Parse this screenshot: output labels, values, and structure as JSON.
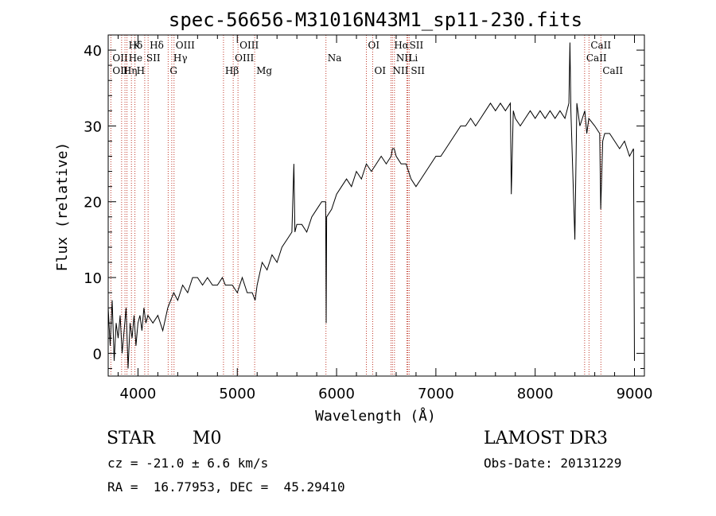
{
  "chart_data": {
    "type": "line",
    "title": "spec-56656-M31016N43M1_sp11-230.fits",
    "xlabel": "Wavelength (Å)",
    "ylabel": "Flux (relative)",
    "xlim": [
      3700,
      9100
    ],
    "ylim": [
      -3,
      42
    ],
    "xticks": [
      4000,
      5000,
      6000,
      7000,
      8000,
      9000
    ],
    "yticks": [
      0,
      10,
      20,
      30,
      40
    ],
    "grid": false,
    "series": [
      {
        "color": "#000000",
        "x": [
          3700,
          3720,
          3740,
          3760,
          3780,
          3800,
          3820,
          3840,
          3860,
          3880,
          3900,
          3920,
          3940,
          3960,
          3980,
          4000,
          4020,
          4040,
          4060,
          4080,
          4100,
          4150,
          4200,
          4250,
          4300,
          4330,
          4360,
          4400,
          4450,
          4500,
          4550,
          4600,
          4650,
          4700,
          4750,
          4800,
          4850,
          4880,
          4900,
          4950,
          5000,
          5050,
          5100,
          5150,
          5180,
          5200,
          5250,
          5300,
          5350,
          5400,
          5450,
          5500,
          5550,
          5570,
          5580,
          5600,
          5650,
          5700,
          5750,
          5800,
          5850,
          5890,
          5895,
          5900,
          5950,
          6000,
          6050,
          6100,
          6150,
          6200,
          6250,
          6300,
          6350,
          6400,
          6450,
          6500,
          6550,
          6563,
          6580,
          6600,
          6650,
          6700,
          6750,
          6800,
          6850,
          6900,
          6950,
          7000,
          7050,
          7100,
          7150,
          7200,
          7250,
          7300,
          7350,
          7400,
          7450,
          7500,
          7550,
          7600,
          7650,
          7700,
          7750,
          7760,
          7780,
          7800,
          7850,
          7900,
          7950,
          8000,
          8050,
          8100,
          8150,
          8200,
          8250,
          8300,
          8340,
          8350,
          8360,
          8400,
          8420,
          8450,
          8500,
          8520,
          8540,
          8600,
          8650,
          8660,
          8680,
          8700,
          8750,
          8800,
          8850,
          8900,
          8950,
          8990,
          9000
        ],
        "values": [
          6,
          1,
          7,
          -1,
          4,
          2,
          5,
          0,
          3,
          6,
          -2,
          4,
          2,
          5,
          1,
          4,
          5,
          3,
          6,
          4,
          5,
          4,
          5,
          3,
          6,
          7,
          8,
          7,
          9,
          8,
          10,
          10,
          9,
          10,
          9,
          9,
          10,
          9,
          9,
          9,
          8,
          10,
          8,
          8,
          7,
          9,
          12,
          11,
          13,
          12,
          14,
          15,
          16,
          25,
          16,
          17,
          17,
          16,
          18,
          19,
          20,
          20,
          4,
          18,
          19,
          21,
          22,
          23,
          22,
          24,
          23,
          25,
          24,
          25,
          26,
          25,
          26,
          27,
          27,
          26,
          25,
          25,
          23,
          22,
          23,
          24,
          25,
          26,
          26,
          27,
          28,
          29,
          30,
          30,
          31,
          30,
          31,
          32,
          33,
          32,
          33,
          32,
          33,
          21,
          32,
          31,
          30,
          31,
          32,
          31,
          32,
          31,
          32,
          31,
          32,
          31,
          33,
          41,
          32,
          15,
          33,
          30,
          32,
          29,
          31,
          30,
          29,
          19,
          28,
          29,
          29,
          28,
          27,
          28,
          26,
          27,
          -1
        ]
      }
    ],
    "emission_lines": [
      {
        "label": "Hδ",
        "x": 3889,
        "row": 0
      },
      {
        "label": "K",
        "x": 3934,
        "row": 0
      },
      {
        "label": "Hδ",
        "x": 4102,
        "row": 0
      },
      {
        "label": "OIII",
        "x": 4363,
        "row": 0
      },
      {
        "label": "OIII",
        "x": 5007,
        "row": 0
      },
      {
        "label": "OI",
        "x": 6300,
        "row": 0
      },
      {
        "label": "Hα",
        "x": 6563,
        "row": 0
      },
      {
        "label": "SII",
        "x": 6717,
        "row": 0
      },
      {
        "label": "CaII",
        "x": 8542,
        "row": 0
      },
      {
        "label": "OII",
        "x": 3727,
        "row": 1
      },
      {
        "label": "He",
        "x": 3889,
        "row": 1
      },
      {
        "label": "SII",
        "x": 4068,
        "row": 1
      },
      {
        "label": "Hγ",
        "x": 4340,
        "row": 1
      },
      {
        "label": "OIII",
        "x": 4959,
        "row": 1
      },
      {
        "label": "Na",
        "x": 5893,
        "row": 1
      },
      {
        "label": "NII",
        "x": 6583,
        "row": 1
      },
      {
        "label": "Li",
        "x": 6708,
        "row": 1
      },
      {
        "label": "CaII",
        "x": 8498,
        "row": 1
      },
      {
        "label": "OII",
        "x": 3727,
        "row": 2
      },
      {
        "label": "Hη",
        "x": 3835,
        "row": 2
      },
      {
        "label": "H",
        "x": 3969,
        "row": 2
      },
      {
        "label": "G",
        "x": 4304,
        "row": 2
      },
      {
        "label": "Hβ",
        "x": 4861,
        "row": 2
      },
      {
        "label": "Mg",
        "x": 5175,
        "row": 2
      },
      {
        "label": "OI",
        "x": 6364,
        "row": 2
      },
      {
        "label": "NII",
        "x": 6548,
        "row": 2
      },
      {
        "label": "SII",
        "x": 6731,
        "row": 2
      },
      {
        "label": "CaII",
        "x": 8662,
        "row": 2
      }
    ],
    "line_marker_x": [
      3727,
      3835,
      3869,
      3889,
      3934,
      3969,
      4068,
      4102,
      4304,
      4340,
      4363,
      4861,
      4959,
      5007,
      5175,
      5893,
      6300,
      6364,
      6548,
      6563,
      6583,
      6708,
      6717,
      6731,
      8498,
      8542,
      8662
    ]
  },
  "info": {
    "object_class": "STAR",
    "subclass": "M0",
    "survey": "LAMOST DR3",
    "cz": "cz = -21.0 ± 6.6 km/s",
    "obs_date": "Obs-Date: 20131229",
    "coords": "RA =  16.77953, DEC =  45.29410"
  }
}
